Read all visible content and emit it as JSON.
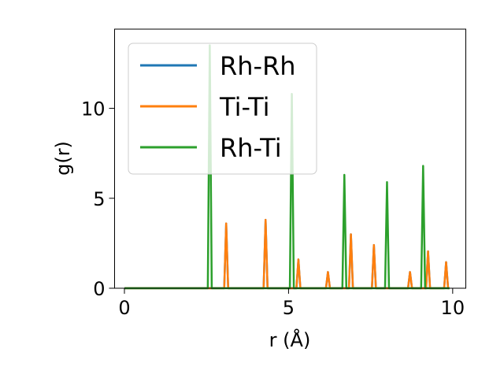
{
  "chart_data": {
    "type": "line",
    "xlabel": "r (Å)",
    "ylabel": "g(r)",
    "xlim": [
      -0.3,
      10.4
    ],
    "ylim": [
      0,
      14.4
    ],
    "xticks": [
      0,
      5,
      10
    ],
    "yticks": [
      0,
      5,
      10
    ],
    "grid": false,
    "legend_position": "top-left",
    "series": [
      {
        "name": "Rh-Rh",
        "color": "#1f77b4",
        "peaks": [
          [
            3.1,
            3.6
          ],
          [
            4.3,
            3.8
          ],
          [
            5.3,
            1.6
          ],
          [
            6.2,
            0.9
          ],
          [
            6.9,
            3.0
          ],
          [
            7.6,
            2.4
          ],
          [
            8.7,
            0.9
          ],
          [
            9.25,
            2.05
          ],
          [
            9.8,
            1.45
          ]
        ]
      },
      {
        "name": "Ti-Ti",
        "color": "#ff7f0e",
        "peaks": [
          [
            3.1,
            3.6
          ],
          [
            4.3,
            3.8
          ],
          [
            5.3,
            1.6
          ],
          [
            6.2,
            0.9
          ],
          [
            6.9,
            3.0
          ],
          [
            7.6,
            2.4
          ],
          [
            8.7,
            0.9
          ],
          [
            9.25,
            2.05
          ],
          [
            9.8,
            1.45
          ]
        ]
      },
      {
        "name": "Rh-Ti",
        "color": "#2ca02c",
        "peaks": [
          [
            2.6,
            13.5
          ],
          [
            5.1,
            10.8
          ],
          [
            6.7,
            6.3
          ],
          [
            8.0,
            5.9
          ],
          [
            9.1,
            6.8
          ]
        ]
      }
    ],
    "x_start": 0,
    "x_end": 9.9
  }
}
